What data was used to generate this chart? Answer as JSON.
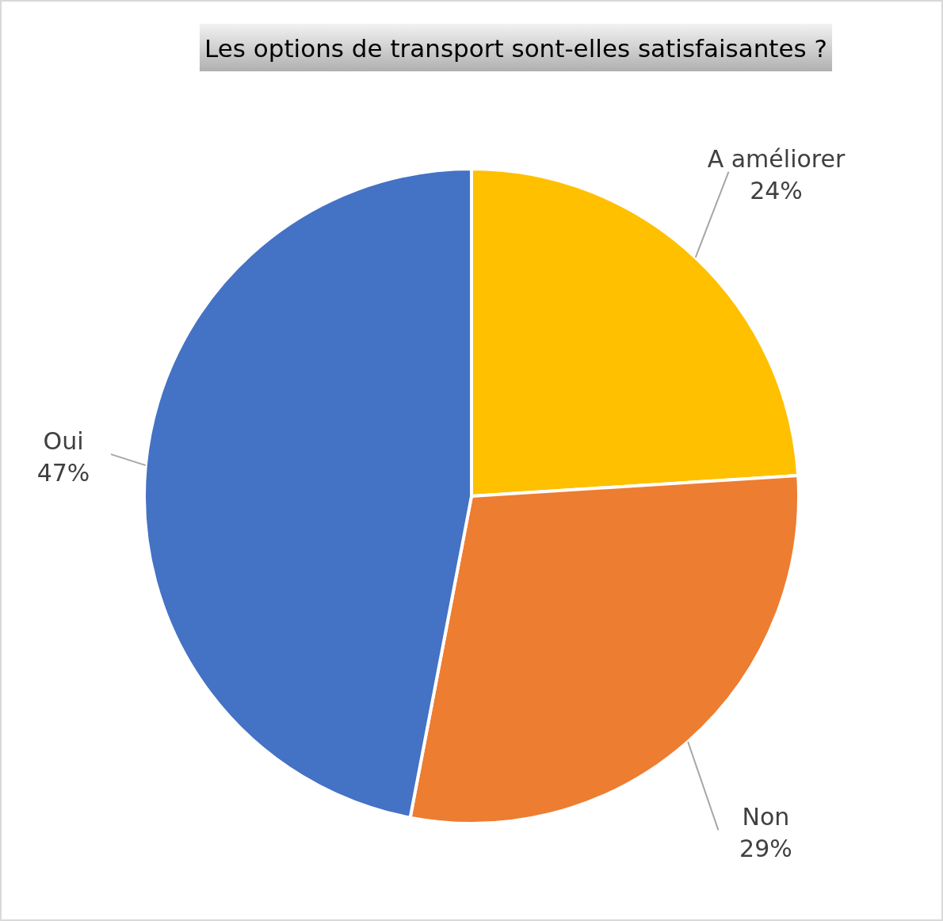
{
  "chart_data": {
    "type": "pie",
    "title": "Les options de transport sont-elles satisfaisantes ?",
    "categories": [
      "A améliorer",
      "Non",
      "Oui"
    ],
    "values": [
      24,
      29,
      47
    ],
    "value_labels": [
      "24%",
      "29%",
      "47%"
    ],
    "colors": [
      "#ffc000",
      "#ed7d31",
      "#4472c4"
    ]
  }
}
